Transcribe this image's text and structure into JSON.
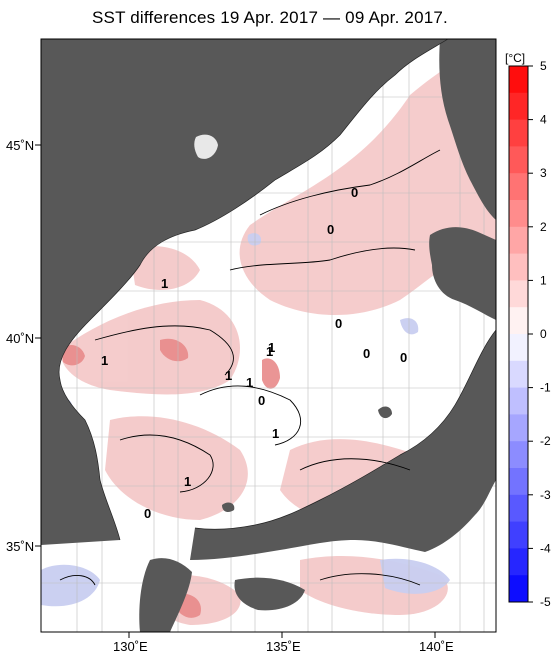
{
  "title": "SST differences 19 Apr. 2017 — 09 Apr. 2017.",
  "map": {
    "lon_range": [
      127,
      142
    ],
    "lat_range": [
      33,
      48
    ],
    "lat_labels": [
      "45˚N",
      "40˚N",
      "35˚N"
    ],
    "lon_labels": [
      "130˚E",
      "135˚E",
      "140˚E"
    ],
    "land_color": "#585858",
    "sea_color": "#ffffff",
    "contour_labels": [
      "1",
      "0",
      "1",
      "1",
      "0",
      "1",
      "1",
      "0",
      "1",
      "0",
      "0",
      "1",
      "1",
      "0",
      "0"
    ]
  },
  "colorbar": {
    "unit": "[°C]",
    "min": -5,
    "max": 5,
    "tick_labels": [
      "5",
      "4",
      "3",
      "2",
      "1",
      "0",
      "-1",
      "-2",
      "-3",
      "-4",
      "-5"
    ],
    "warm_color": "#ff0000",
    "cold_color": "#0000ff"
  }
}
